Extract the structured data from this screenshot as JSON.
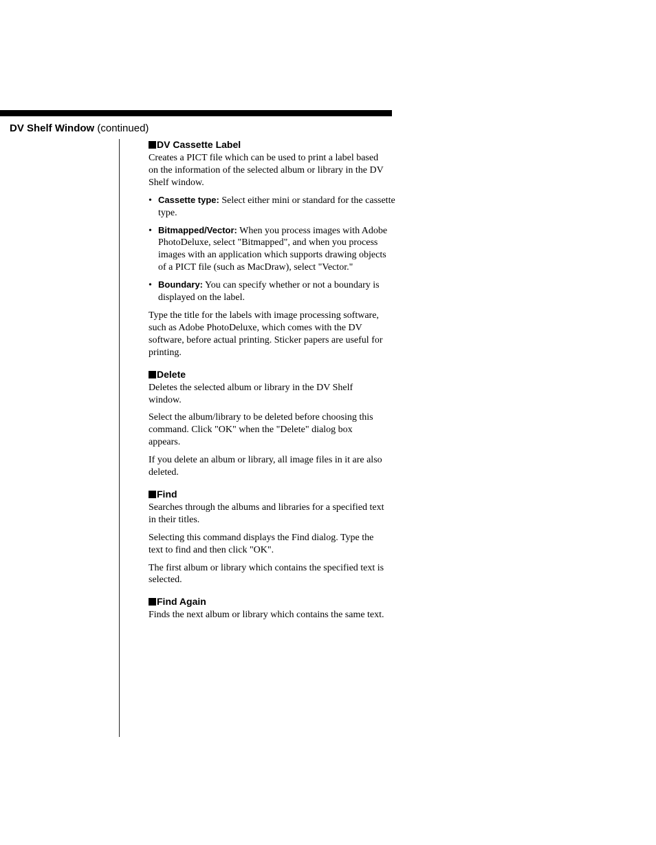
{
  "colors": {
    "background": "#ffffff",
    "text": "#000000",
    "rule": "#000000",
    "divider": "#222222"
  },
  "fonts": {
    "body_family": "Palatino Linotype, Book Antiqua, Palatino, Georgia, serif",
    "heading_family": "Verdana, Geneva, Arial, sans-serif",
    "body_size_pt": 11,
    "heading_size_pt": 11
  },
  "header": {
    "title": "DV Shelf Window",
    "continued": "(continued)"
  },
  "sections": [
    {
      "title": "DV Cassette Label",
      "paras_before": [
        "Creates a PICT file which can be used to print a label based on the information of the selected album or library in the DV Shelf window."
      ],
      "bullets": [
        {
          "term": "Cassette type:",
          "text": " Select either mini or standard for the cassette type."
        },
        {
          "term": "Bitmapped/Vector:",
          "text": " When you process images with Adobe PhotoDeluxe, select \"Bitmapped\", and when you process images with an application which supports drawing objects of a PICT file (such as MacDraw), select \"Vector.\""
        },
        {
          "term": "Boundary:",
          "text": " You can specify whether or not a boundary is displayed on the label."
        }
      ],
      "paras_after": [
        "Type the title for the labels with image processing software, such as Adobe PhotoDeluxe, which comes with the DV software, before actual printing.  Sticker papers are useful for printing."
      ]
    },
    {
      "title": "Delete",
      "paras_before": [
        "Deletes the selected album or library in the DV Shelf window.",
        "Select the album/library to be deleted before choosing this command.  Click \"OK\" when the \"Delete\" dialog box appears.",
        "If you delete an album or library, all image files in it are also deleted."
      ],
      "bullets": [],
      "paras_after": []
    },
    {
      "title": "Find",
      "paras_before": [
        "Searches through the albums and libraries for a specified text in their titles.",
        "Selecting this command displays the Find dialog. Type the text to find and then click \"OK\".",
        "The first album or library which contains the specified text is selected."
      ],
      "bullets": [],
      "paras_after": []
    },
    {
      "title": "Find Again",
      "paras_before": [
        "Finds the next album or library which contains the same text."
      ],
      "bullets": [],
      "paras_after": []
    }
  ]
}
